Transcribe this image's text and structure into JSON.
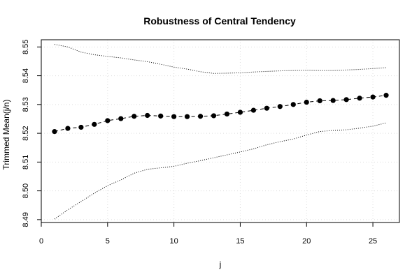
{
  "chart_data": {
    "type": "line",
    "title": "Robustness of Central Tendency",
    "xlabel": "j",
    "ylabel": "Trimmed Mean(j/n)",
    "xlim": [
      0,
      27
    ],
    "ylim": [
      8.489,
      8.5525
    ],
    "x_ticks": [
      0,
      5,
      10,
      15,
      20,
      25
    ],
    "y_ticks": [
      8.49,
      8.5,
      8.51,
      8.52,
      8.53,
      8.54,
      8.55
    ],
    "x_tick_labels": [
      "0",
      "5",
      "10",
      "15",
      "20",
      "25"
    ],
    "y_tick_labels": [
      "8.49",
      "8.50",
      "8.51",
      "8.52",
      "8.53",
      "8.54",
      "8.55"
    ],
    "grid": true,
    "legend": "none",
    "x": [
      1,
      2,
      3,
      4,
      5,
      6,
      7,
      8,
      9,
      10,
      11,
      12,
      13,
      14,
      15,
      16,
      17,
      18,
      19,
      20,
      21,
      22,
      23,
      24,
      25,
      26
    ],
    "series": [
      {
        "style": "dashed-with-points",
        "color": "#000000",
        "values": [
          8.5206,
          8.5217,
          8.5221,
          8.5231,
          8.5244,
          8.5251,
          8.5259,
          8.5262,
          8.526,
          8.5258,
          8.5258,
          8.5259,
          8.5261,
          8.5267,
          8.5273,
          8.528,
          8.5287,
          8.5293,
          8.53,
          8.5308,
          8.5313,
          8.5314,
          8.5317,
          8.5322,
          8.5326,
          8.5332
        ]
      },
      {
        "style": "dotted",
        "color": "#000000",
        "values": [
          8.5509,
          8.55,
          8.5482,
          8.5473,
          8.5467,
          8.5462,
          8.5455,
          8.5449,
          8.544,
          8.543,
          8.5423,
          8.5414,
          8.5408,
          8.5409,
          8.541,
          8.5413,
          8.5415,
          8.5417,
          8.5418,
          8.5419,
          8.5418,
          8.5418,
          8.542,
          8.5422,
          8.5425,
          8.5428
        ]
      },
      {
        "style": "dotted",
        "color": "#000000",
        "values": [
          8.4902,
          8.4934,
          8.4963,
          8.4992,
          8.5018,
          8.5038,
          8.5061,
          8.5075,
          8.508,
          8.5085,
          8.5096,
          8.5105,
          8.5115,
          8.5125,
          8.5135,
          8.5146,
          8.516,
          8.5171,
          8.518,
          8.5194,
          8.5206,
          8.521,
          8.5212,
          8.5218,
          8.5225,
          8.5236
        ]
      }
    ]
  }
}
